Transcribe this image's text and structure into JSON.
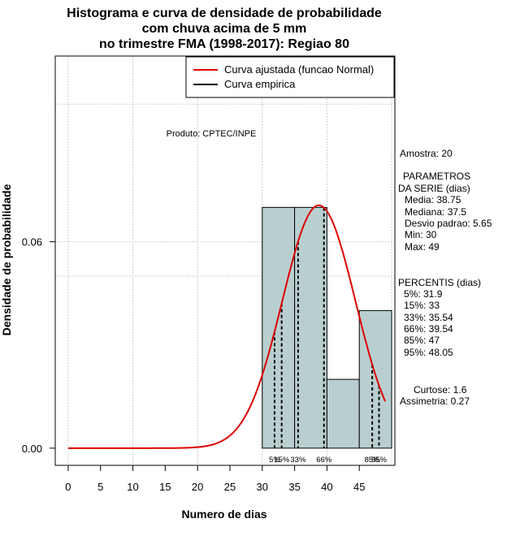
{
  "chart_data": {
    "type": "histogram",
    "title_lines": [
      "Histograma e curva de densidade de probabilidade",
      "com chuva acima de 5 mm",
      "no trimestre FMA (1998-2017): Regiao 80"
    ],
    "xlabel": "Numero de dias",
    "ylabel": "Densidade de probabilidade",
    "xlim": [
      -2,
      50.5
    ],
    "ylim": [
      -0.005,
      0.114
    ],
    "x_ticks": [
      0,
      5,
      10,
      15,
      20,
      25,
      30,
      35,
      40,
      45
    ],
    "y_ticks": [
      0.0,
      0.06
    ],
    "y_tick_labels": [
      "0.00",
      "0.06"
    ],
    "x_grid": [
      0,
      10,
      20,
      30,
      40,
      50
    ],
    "y_grid": [
      0.06,
      0.1
    ],
    "extra_y_grid": [
      0.05
    ],
    "bins": [
      {
        "start": 30,
        "end": 35,
        "density": 0.07
      },
      {
        "start": 35,
        "end": 40,
        "density": 0.07
      },
      {
        "start": 40,
        "end": 45,
        "density": 0.02
      },
      {
        "start": 45,
        "end": 50,
        "density": 0.04
      }
    ],
    "normal_fit": {
      "mean": 38.75,
      "sd": 5.65,
      "x_start": 0,
      "x_end": 49
    },
    "percentile_lines": [
      {
        "label": "5%",
        "x": 31.9
      },
      {
        "label": "15%",
        "x": 33
      },
      {
        "label": "33%",
        "x": 35.54
      },
      {
        "label": "66%",
        "x": 39.54
      },
      {
        "label": "85%",
        "x": 47
      },
      {
        "label": "95%",
        "x": 48.05
      }
    ],
    "legend": [
      {
        "label": "Curva ajustada (funcao Normal)",
        "color": "#dd0000"
      },
      {
        "label": "Curva empirica",
        "color": "#000000"
      }
    ],
    "product_label": "Produto: CPTEC/INPE",
    "side_panel": [
      "Amostra: 20",
      "",
      "PARAMETROS",
      "DA SERIE (dias)",
      "Media: 38.75",
      "Mediana: 37.5",
      "Desvio padrao: 5.65",
      "Min: 30",
      "Max: 49",
      "",
      "PERCENTIS (dias)",
      "5%: 31.9",
      "15%: 33",
      "33%: 35.54",
      "66%: 39.54",
      "85%: 47",
      "95%: 48.05",
      "",
      "Curtose: 1.6",
      "Assimetria: 0.27"
    ]
  },
  "colors": {
    "bar_fill": "#b9cfcf",
    "curve": "#dd0000",
    "grid": "#bdbdbd"
  }
}
